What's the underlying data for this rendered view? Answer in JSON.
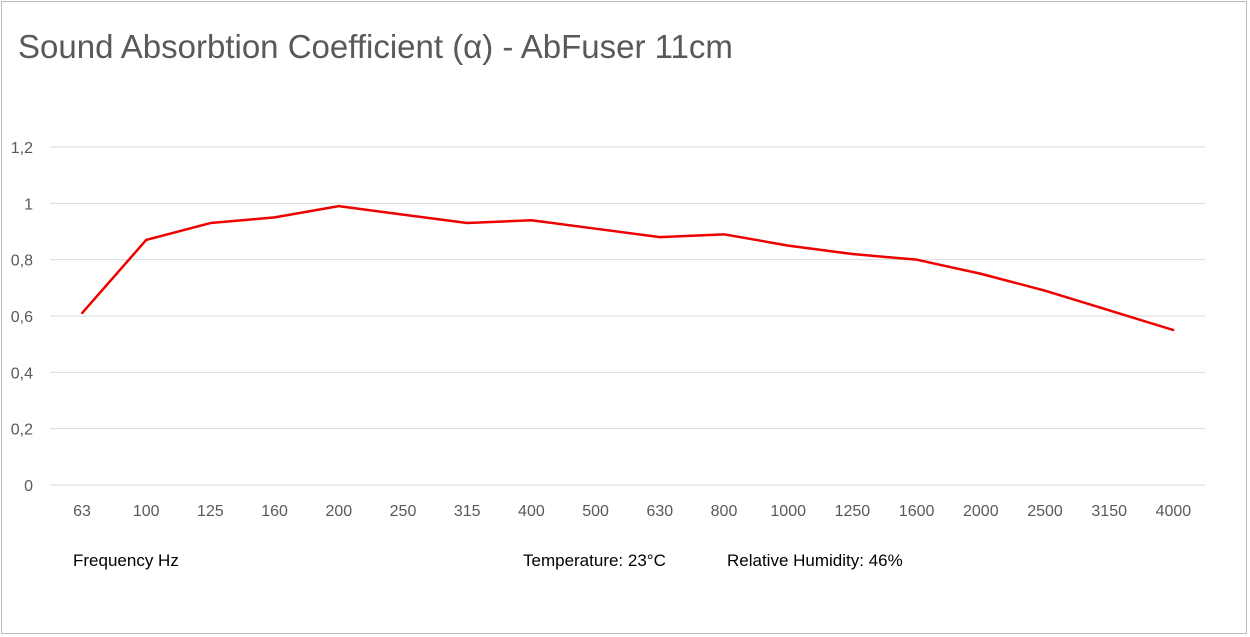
{
  "chart_data": {
    "type": "line",
    "title": "Sound Absorbtion Coefficient (α) - AbFuser 11cm",
    "categories": [
      "63",
      "100",
      "125",
      "160",
      "200",
      "250",
      "315",
      "400",
      "500",
      "630",
      "800",
      "1000",
      "1250",
      "1600",
      "2000",
      "2500",
      "3150",
      "4000"
    ],
    "series": [
      {
        "values": [
          0.61,
          0.87,
          0.93,
          0.95,
          0.99,
          0.96,
          0.93,
          0.94,
          0.91,
          0.88,
          0.89,
          0.85,
          0.82,
          0.8,
          0.75,
          0.69,
          0.62,
          0.55
        ]
      }
    ],
    "y_ticks": [
      "0",
      "0,2",
      "0,4",
      "0,6",
      "0,8",
      "1",
      "1,2"
    ],
    "ylim": [
      0,
      1.2
    ],
    "xlabel": "Frequency Hz",
    "ylabel": "",
    "grid": true,
    "legend": "none",
    "line_color": "#ee0000",
    "annotations": {
      "temperature": "Temperature:  23°C",
      "humidity": "Relative Humidity: 46%"
    }
  }
}
